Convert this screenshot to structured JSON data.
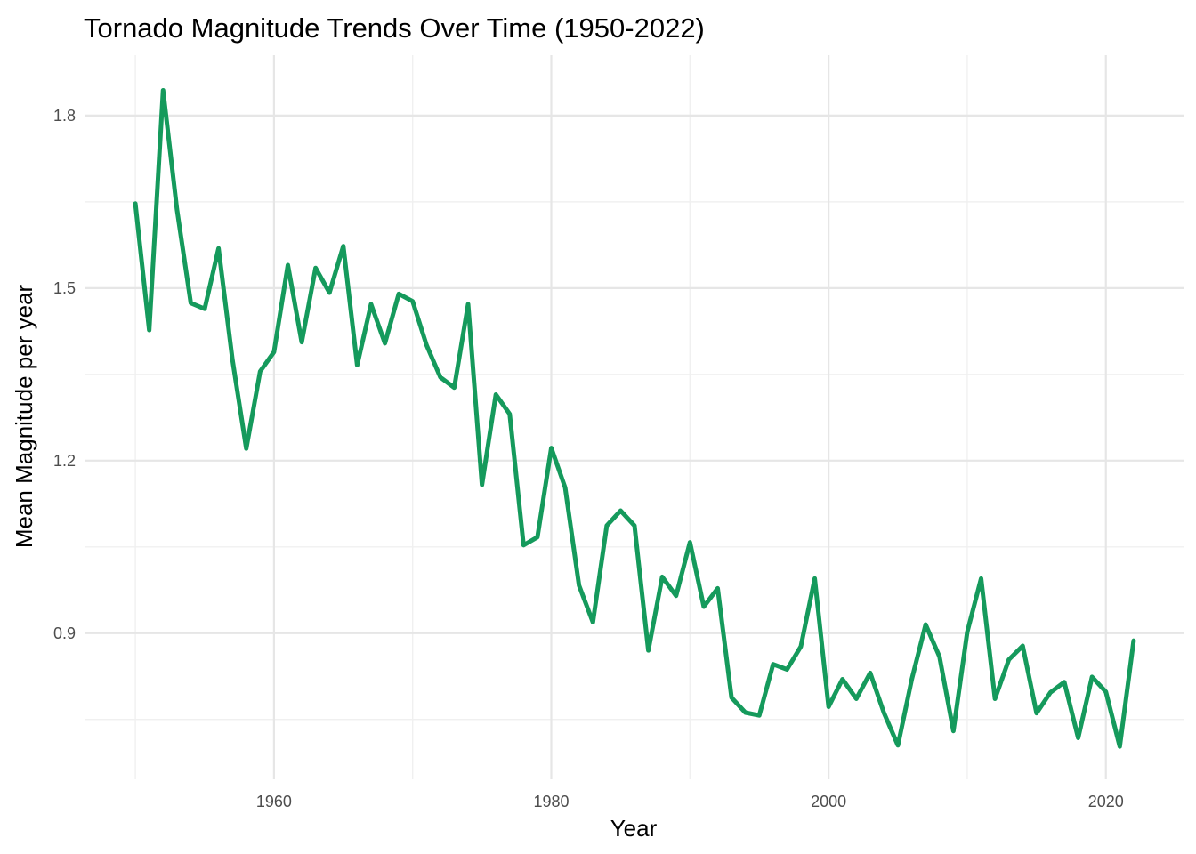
{
  "chart_data": {
    "type": "line",
    "title": "Tornado Magnitude Trends Over Time (1950-2022)",
    "xlabel": "Year",
    "ylabel": "Mean Magnitude per year",
    "xlim": [
      1946.4,
      2025.6
    ],
    "ylim": [
      0.646,
      1.905
    ],
    "x_ticks": [
      1960,
      1980,
      2000,
      2020
    ],
    "x_tick_labels": [
      "1960",
      "1980",
      "2000",
      "2020"
    ],
    "x_minor_ticks": [
      1950,
      1970,
      1990,
      2010
    ],
    "y_ticks": [
      0.9,
      1.2,
      1.5,
      1.8
    ],
    "y_tick_labels": [
      "0.9",
      "1.2",
      "1.5",
      "1.8"
    ],
    "y_minor_ticks": [
      0.75,
      1.05,
      1.35,
      1.65
    ],
    "grid": true,
    "legend": "none",
    "colors": {
      "line": "#159a5c",
      "grid_major": "#e6e6e6",
      "grid_minor": "#f0f0f0"
    },
    "series": [
      {
        "x": [
          1950,
          1951,
          1952,
          1953,
          1954,
          1955,
          1956,
          1957,
          1958,
          1959,
          1960,
          1961,
          1962,
          1963,
          1964,
          1965,
          1966,
          1967,
          1968,
          1969,
          1970,
          1971,
          1972,
          1973,
          1974,
          1975,
          1976,
          1977,
          1978,
          1979,
          1980,
          1981,
          1982,
          1983,
          1984,
          1985,
          1986,
          1987,
          1988,
          1989,
          1990,
          1991,
          1992,
          1993,
          1994,
          1995,
          1996,
          1997,
          1998,
          1999,
          2000,
          2001,
          2002,
          2003,
          2004,
          2005,
          2006,
          2007,
          2008,
          2009,
          2010,
          2011,
          2012,
          2013,
          2014,
          2015,
          2016,
          2017,
          2018,
          2019,
          2020,
          2021,
          2022
        ],
        "values": [
          1.647,
          1.427,
          1.844,
          1.637,
          1.474,
          1.464,
          1.569,
          1.376,
          1.221,
          1.355,
          1.389,
          1.54,
          1.406,
          1.535,
          1.492,
          1.573,
          1.366,
          1.472,
          1.404,
          1.49,
          1.477,
          1.401,
          1.345,
          1.327,
          1.472,
          1.158,
          1.315,
          1.281,
          1.053,
          1.067,
          1.222,
          1.153,
          0.983,
          0.919,
          1.087,
          1.113,
          1.087,
          0.87,
          0.998,
          0.965,
          1.058,
          0.946,
          0.978,
          0.788,
          0.762,
          0.757,
          0.846,
          0.837,
          0.877,
          0.995,
          0.772,
          0.82,
          0.786,
          0.831,
          0.761,
          0.705,
          0.82,
          0.915,
          0.859,
          0.73,
          0.902,
          0.995,
          0.786,
          0.854,
          0.878,
          0.761,
          0.797,
          0.815,
          0.718,
          0.824,
          0.798,
          0.703,
          0.887
        ]
      }
    ]
  }
}
